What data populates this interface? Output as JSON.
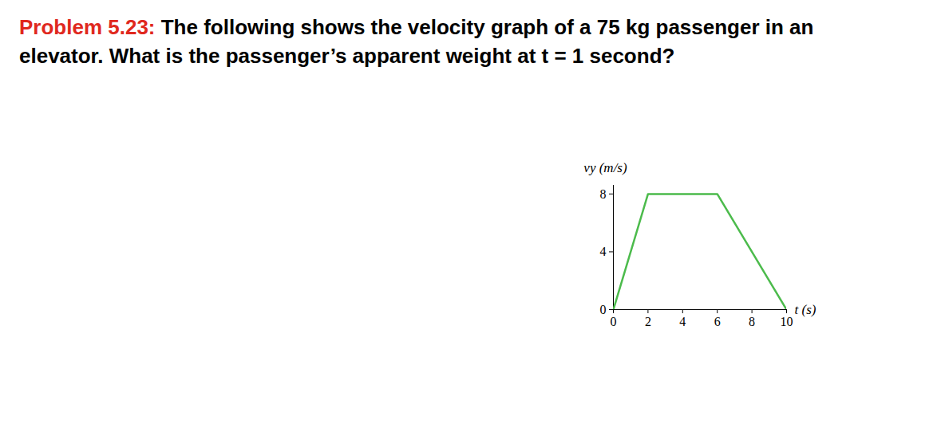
{
  "chart_data": {
    "type": "line",
    "title": "Problem 5.23:",
    "subtitle": "The following shows the velocity graph of a 75 kg passenger in an elevator.  What is the passenger’s apparent weight at t = 1 second?",
    "xlabel": "t (s)",
    "ylabel": "vy (m/s)",
    "x": [
      0,
      2,
      6,
      10
    ],
    "values": [
      0,
      8,
      8,
      0
    ],
    "color": "#4cbb4c",
    "xlim": [
      0,
      10
    ],
    "xticks": [
      0,
      2,
      4,
      6,
      8,
      10
    ],
    "ylim": [
      0,
      8.6
    ],
    "yticks": [
      0,
      4,
      8
    ],
    "grid": false
  }
}
